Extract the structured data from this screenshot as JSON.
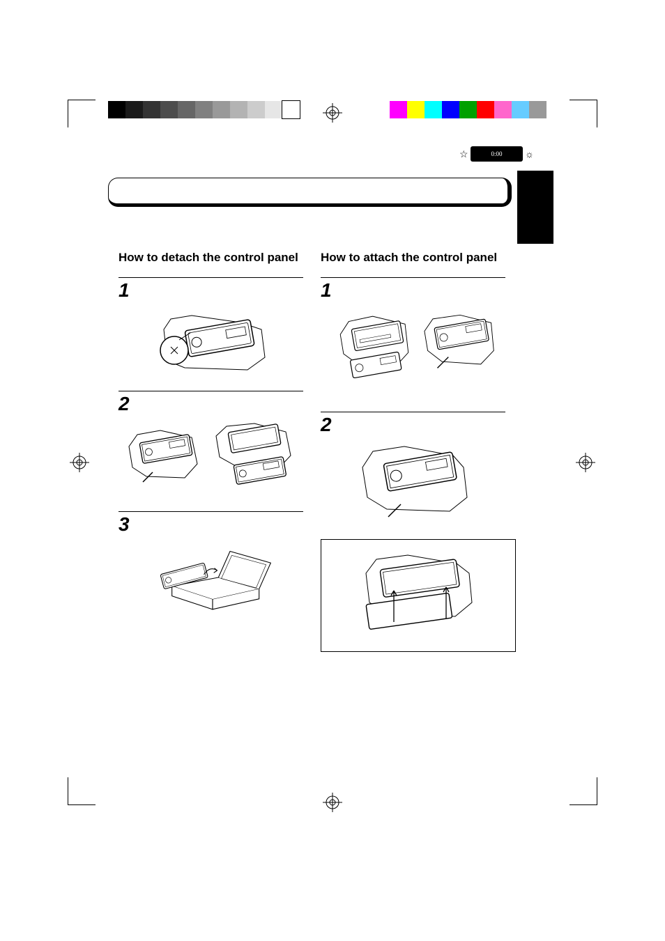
{
  "badge": "0:00",
  "left": {
    "heading": "How to detach the control panel",
    "steps": [
      "1",
      "2",
      "3"
    ]
  },
  "right": {
    "heading": "How to attach the control panel",
    "steps": [
      "1",
      "2"
    ]
  },
  "colors": {
    "grayscale": [
      "#000000",
      "#1a1a1a",
      "#333333",
      "#4d4d4d",
      "#666666",
      "#808080",
      "#999999",
      "#b3b3b3",
      "#cccccc",
      "#e6e6e6",
      "#ffffff"
    ],
    "cmyk": [
      "#ff00ff",
      "#ffff00",
      "#00ffff",
      "#0000ff",
      "#00a000",
      "#ff0000",
      "#ff66cc",
      "#66ccff",
      "#999999"
    ]
  }
}
